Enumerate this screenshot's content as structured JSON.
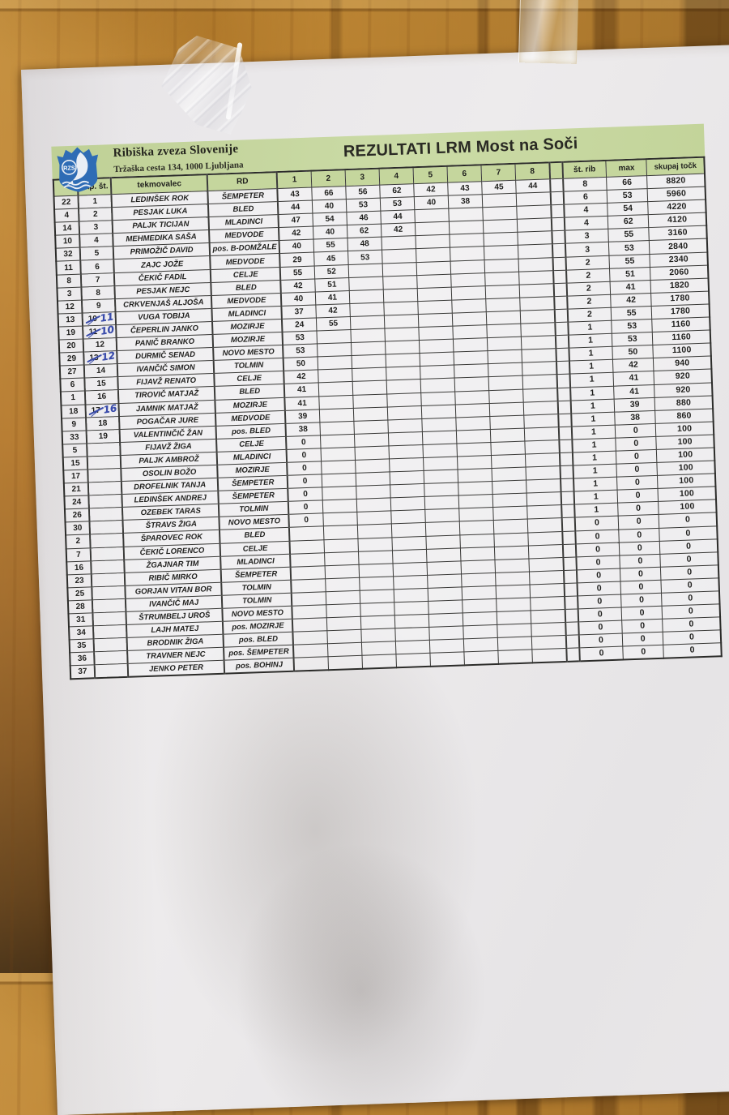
{
  "org": {
    "name": "Ribiška zveza Slovenije",
    "address": "Tržaška cesta 134, 1000   Ljubljana",
    "logo_text": "RZS"
  },
  "title": "REZULTATI LRM Most na Soči",
  "colors": {
    "header_green": "#c5d69d",
    "logo_blue": "#2e6cb5",
    "ink_blue": "#3a4cab",
    "paper": "#eae8e9",
    "wood": "#b07226"
  },
  "table": {
    "headers": {
      "start": "",
      "rank": "zap. št.",
      "name": "tekmovalec",
      "club": "RD",
      "catches": [
        "1",
        "2",
        "3",
        "4",
        "5",
        "6",
        "7",
        "8"
      ],
      "spacer": "",
      "fish": "št. rib",
      "max": "max",
      "total": "skupaj točk"
    },
    "rows": [
      {
        "start": "22",
        "rank": "1",
        "name": "LEDINŠEK ROK",
        "club": "ŠEMPETER",
        "catches": [
          "43",
          "66",
          "56",
          "62",
          "42",
          "43",
          "45",
          "44"
        ],
        "fish": "8",
        "max": "66",
        "total": "8820"
      },
      {
        "start": "4",
        "rank": "2",
        "name": "PESJAK LUKA",
        "club": "BLED",
        "catches": [
          "44",
          "40",
          "53",
          "53",
          "40",
          "38"
        ],
        "fish": "6",
        "max": "53",
        "total": "5960"
      },
      {
        "start": "14",
        "rank": "3",
        "name": "PALJK TICIJAN",
        "club": "MLADINCI",
        "catches": [
          "47",
          "54",
          "46",
          "44"
        ],
        "fish": "4",
        "max": "54",
        "total": "4220"
      },
      {
        "start": "10",
        "rank": "4",
        "name": "MEHMEDIKA SAŠA",
        "club": "MEDVODE",
        "catches": [
          "42",
          "40",
          "62",
          "42"
        ],
        "fish": "4",
        "max": "62",
        "total": "4120"
      },
      {
        "start": "32",
        "rank": "5",
        "name": "PRIMOŽIČ DAVID",
        "club": "pos. B-DOMŽALE",
        "catches": [
          "40",
          "55",
          "48"
        ],
        "fish": "3",
        "max": "55",
        "total": "3160"
      },
      {
        "start": "11",
        "rank": "6",
        "name": "ZAJC JOŽE",
        "club": "MEDVODE",
        "catches": [
          "29",
          "45",
          "53"
        ],
        "fish": "3",
        "max": "53",
        "total": "2840"
      },
      {
        "start": "8",
        "rank": "7",
        "name": "ČEKIČ FADIL",
        "club": "CELJE",
        "catches": [
          "55",
          "52"
        ],
        "fish": "2",
        "max": "55",
        "total": "2340"
      },
      {
        "start": "3",
        "rank": "8",
        "name": "PESJAK NEJC",
        "club": "BLED",
        "catches": [
          "42",
          "51"
        ],
        "fish": "2",
        "max": "51",
        "total": "2060"
      },
      {
        "start": "12",
        "rank": "9",
        "name": "CRKVENJAŠ ALJOŠA",
        "club": "MEDVODE",
        "catches": [
          "40",
          "41"
        ],
        "fish": "2",
        "max": "41",
        "total": "1820"
      },
      {
        "start": "13",
        "rank": "10",
        "rank_hand": "11",
        "name": "VUGA TOBIJA",
        "club": "MLADINCI",
        "catches": [
          "37",
          "42"
        ],
        "fish": "2",
        "max": "42",
        "total": "1780"
      },
      {
        "start": "19",
        "rank": "11",
        "rank_hand": "10",
        "name": "ČEPERLIN JANKO",
        "club": "MOZIRJE",
        "catches": [
          "24",
          "55"
        ],
        "fish": "2",
        "max": "55",
        "total": "1780"
      },
      {
        "start": "20",
        "rank": "12",
        "name": "PANIČ BRANKO",
        "club": "MOZIRJE",
        "catches": [
          "53"
        ],
        "fish": "1",
        "max": "53",
        "total": "1160"
      },
      {
        "start": "29",
        "rank": "13",
        "rank_hand": "12",
        "name": "DURMIČ SENAD",
        "club": "NOVO MESTO",
        "catches": [
          "53"
        ],
        "fish": "1",
        "max": "53",
        "total": "1160"
      },
      {
        "start": "27",
        "rank": "14",
        "name": "IVANČIČ SIMON",
        "club": "TOLMIN",
        "catches": [
          "50"
        ],
        "fish": "1",
        "max": "50",
        "total": "1100"
      },
      {
        "start": "6",
        "rank": "15",
        "name": "FIJAVŽ RENATO",
        "club": "CELJE",
        "catches": [
          "42"
        ],
        "fish": "1",
        "max": "42",
        "total": "940"
      },
      {
        "start": "1",
        "rank": "16",
        "name": "TIROVIČ MATJAŽ",
        "club": "BLED",
        "catches": [
          "41"
        ],
        "fish": "1",
        "max": "41",
        "total": "920"
      },
      {
        "start": "18",
        "rank": "17",
        "rank_hand": "16",
        "name": "JAMNIK MATJAŽ",
        "club": "MOZIRJE",
        "catches": [
          "41"
        ],
        "fish": "1",
        "max": "41",
        "total": "920"
      },
      {
        "start": "9",
        "rank": "18",
        "name": "POGAČAR JURE",
        "club": "MEDVODE",
        "catches": [
          "39"
        ],
        "fish": "1",
        "max": "39",
        "total": "880"
      },
      {
        "start": "33",
        "rank": "19",
        "name": "VALENTINČIČ ŽAN",
        "club": "pos. BLED",
        "catches": [
          "38"
        ],
        "fish": "1",
        "max": "38",
        "total": "860"
      },
      {
        "start": "5",
        "rank": "",
        "name": "FIJAVŽ ŽIGA",
        "club": "CELJE",
        "catches": [
          "0"
        ],
        "fish": "1",
        "max": "0",
        "total": "100"
      },
      {
        "start": "15",
        "rank": "",
        "name": "PALJK AMBROŽ",
        "club": "MLADINCI",
        "catches": [
          "0"
        ],
        "fish": "1",
        "max": "0",
        "total": "100"
      },
      {
        "start": "17",
        "rank": "",
        "name": "OSOLIN BOŽO",
        "club": "MOZIRJE",
        "catches": [
          "0"
        ],
        "fish": "1",
        "max": "0",
        "total": "100"
      },
      {
        "start": "21",
        "rank": "",
        "name": "DROFELNIK TANJA",
        "club": "ŠEMPETER",
        "catches": [
          "0"
        ],
        "fish": "1",
        "max": "0",
        "total": "100"
      },
      {
        "start": "24",
        "rank": "",
        "name": "LEDINŠEK ANDREJ",
        "club": "ŠEMPETER",
        "catches": [
          "0"
        ],
        "fish": "1",
        "max": "0",
        "total": "100"
      },
      {
        "start": "26",
        "rank": "",
        "name": "OZEBEK TARAS",
        "club": "TOLMIN",
        "catches": [
          "0"
        ],
        "fish": "1",
        "max": "0",
        "total": "100"
      },
      {
        "start": "30",
        "rank": "",
        "name": "ŠTRAVS ŽIGA",
        "club": "NOVO MESTO",
        "catches": [
          "0"
        ],
        "fish": "1",
        "max": "0",
        "total": "100"
      },
      {
        "start": "2",
        "rank": "",
        "name": "ŠPAROVEC ROK",
        "club": "BLED",
        "catches": [],
        "fish": "0",
        "max": "0",
        "total": "0"
      },
      {
        "start": "7",
        "rank": "",
        "name": "ČEKIČ LORENCO",
        "club": "CELJE",
        "catches": [],
        "fish": "0",
        "max": "0",
        "total": "0"
      },
      {
        "start": "16",
        "rank": "",
        "name": "ŽGAJNAR TIM",
        "club": "MLADINCI",
        "catches": [],
        "fish": "0",
        "max": "0",
        "total": "0"
      },
      {
        "start": "23",
        "rank": "",
        "name": "RIBIČ MIRKO",
        "club": "ŠEMPETER",
        "catches": [],
        "fish": "0",
        "max": "0",
        "total": "0"
      },
      {
        "start": "25",
        "rank": "",
        "name": "GORJAN VITAN BOR",
        "club": "TOLMIN",
        "catches": [],
        "fish": "0",
        "max": "0",
        "total": "0"
      },
      {
        "start": "28",
        "rank": "",
        "name": "IVANČIČ MAJ",
        "club": "TOLMIN",
        "catches": [],
        "fish": "0",
        "max": "0",
        "total": "0"
      },
      {
        "start": "31",
        "rank": "",
        "name": "ŠTRUMBELJ UROŠ",
        "club": "NOVO MESTO",
        "catches": [],
        "fish": "0",
        "max": "0",
        "total": "0"
      },
      {
        "start": "34",
        "rank": "",
        "name": "LAJH MATEJ",
        "club": "pos. MOZIRJE",
        "catches": [],
        "fish": "0",
        "max": "0",
        "total": "0"
      },
      {
        "start": "35",
        "rank": "",
        "name": "BRODNIK ŽIGA",
        "club": "pos. BLED",
        "catches": [],
        "fish": "0",
        "max": "0",
        "total": "0"
      },
      {
        "start": "36",
        "rank": "",
        "name": "TRAVNER NEJC",
        "club": "pos. ŠEMPETER",
        "catches": [],
        "fish": "0",
        "max": "0",
        "total": "0"
      },
      {
        "start": "37",
        "rank": "",
        "name": "JENKO PETER",
        "club": "pos. BOHINJ",
        "catches": [],
        "fish": "0",
        "max": "0",
        "total": "0"
      }
    ]
  }
}
